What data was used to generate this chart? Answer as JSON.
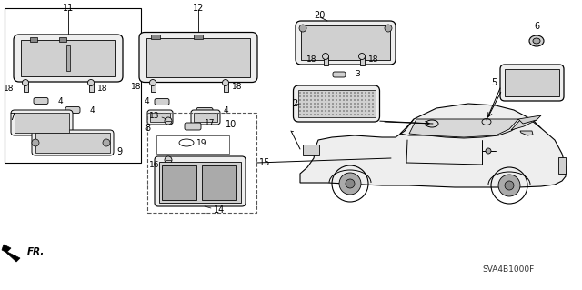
{
  "bg_color": "#ffffff",
  "line_color": "#000000",
  "gray_fill": "#d0d0d0",
  "dark_fill": "#888888",
  "mid_fill": "#aaaaaa",
  "light_fill": "#eeeeee",
  "diagram_code": "SVA4B1000F",
  "label_fontsize": 6.5,
  "figsize": [
    6.4,
    3.19
  ],
  "dpi": 100,
  "xlim": [
    0,
    640
  ],
  "ylim": [
    0,
    319
  ]
}
